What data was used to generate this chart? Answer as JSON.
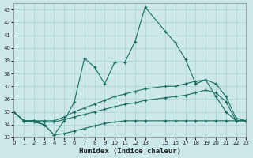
{
  "xlabel": "Humidex (Indice chaleur)",
  "background_color": "#cce8e8",
  "grid_color": "#aad0d0",
  "line_color": "#1a6e60",
  "xlim": [
    0,
    23
  ],
  "ylim": [
    33,
    43.5
  ],
  "xticks": [
    0,
    1,
    2,
    3,
    4,
    5,
    6,
    7,
    8,
    9,
    10,
    11,
    12,
    13,
    15,
    16,
    17,
    18,
    19,
    20,
    21,
    22,
    23
  ],
  "yticks": [
    33,
    34,
    35,
    36,
    37,
    38,
    39,
    40,
    41,
    42,
    43
  ],
  "series": [
    {
      "x": [
        0,
        1,
        2,
        3,
        4,
        5,
        6,
        7,
        8,
        9,
        10,
        11,
        12,
        13,
        15,
        16,
        17,
        18,
        19,
        20,
        21,
        22,
        23
      ],
      "y": [
        35.0,
        34.3,
        34.3,
        34.0,
        33.2,
        34.3,
        35.8,
        39.2,
        38.5,
        37.2,
        38.9,
        38.9,
        40.5,
        43.2,
        41.3,
        40.4,
        39.1,
        37.2,
        37.5,
        36.2,
        35.0,
        34.3,
        34.3
      ]
    },
    {
      "x": [
        0,
        1,
        2,
        3,
        4,
        5,
        6,
        7,
        8,
        9,
        10,
        11,
        12,
        13,
        15,
        16,
        17,
        18,
        19,
        20,
        21,
        22,
        23
      ],
      "y": [
        35.0,
        34.3,
        34.3,
        34.3,
        34.3,
        34.6,
        35.0,
        35.3,
        35.6,
        35.9,
        36.2,
        36.4,
        36.6,
        36.8,
        37.0,
        37.0,
        37.2,
        37.4,
        37.5,
        37.2,
        36.2,
        34.5,
        34.3
      ]
    },
    {
      "x": [
        0,
        1,
        2,
        3,
        4,
        5,
        6,
        7,
        8,
        9,
        10,
        11,
        12,
        13,
        15,
        16,
        17,
        18,
        19,
        20,
        21,
        22,
        23
      ],
      "y": [
        35.0,
        34.3,
        34.3,
        34.2,
        34.2,
        34.4,
        34.6,
        34.8,
        35.0,
        35.2,
        35.4,
        35.6,
        35.7,
        35.9,
        36.1,
        36.2,
        36.3,
        36.5,
        36.7,
        36.5,
        35.8,
        34.3,
        34.3
      ]
    },
    {
      "x": [
        0,
        1,
        2,
        3,
        4,
        5,
        6,
        7,
        8,
        9,
        10,
        11,
        12,
        13,
        15,
        16,
        17,
        18,
        19,
        20,
        21,
        22,
        23
      ],
      "y": [
        35.0,
        34.3,
        34.2,
        34.0,
        33.2,
        33.3,
        33.5,
        33.7,
        33.9,
        34.1,
        34.2,
        34.3,
        34.3,
        34.3,
        34.3,
        34.3,
        34.3,
        34.3,
        34.3,
        34.3,
        34.3,
        34.3,
        34.3
      ]
    }
  ]
}
